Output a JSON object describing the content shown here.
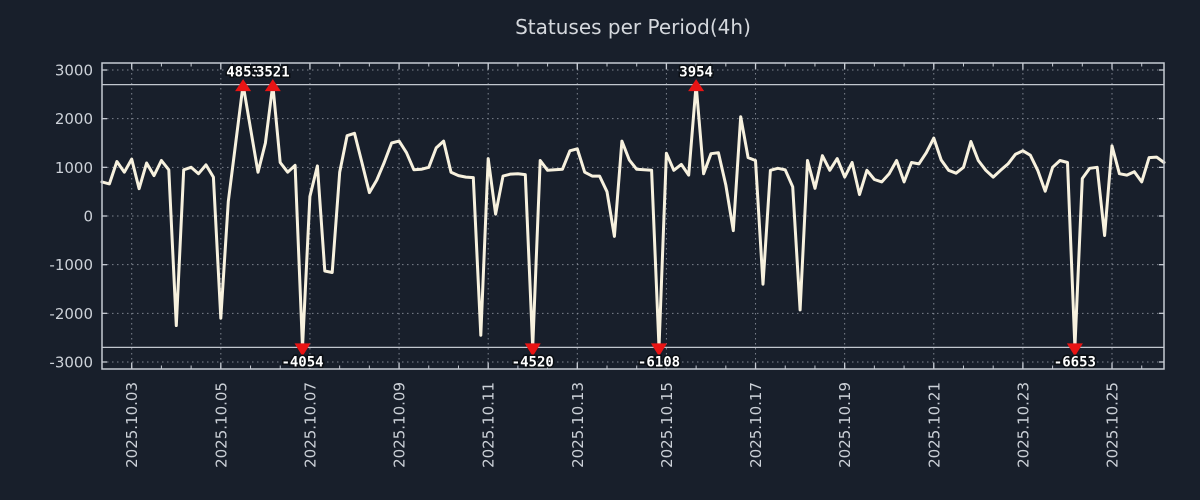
{
  "title": "Statuses per Period(4h)",
  "colors": {
    "background": "#181f2b",
    "plot_background": "#181f2b",
    "line": "#f7f1de",
    "marker": "#e81414",
    "axis_border": "#c6cbd3",
    "clip_line": "#c2c7cf",
    "grid": "#8f95a0",
    "tick_text": "#ccd1d8",
    "title_text": "#d5d8dd",
    "annotation_text": "#ffffff"
  },
  "chart_data": {
    "type": "line",
    "title": "Statuses per Period(4h)",
    "series_name": "Statuses",
    "interval_hours": 4,
    "grid": true,
    "legend_position": "none",
    "ylim": [
      -3144,
      3144
    ],
    "y_ticks": [
      3000,
      2000,
      1000,
      0,
      -1000,
      -2000,
      -3000
    ],
    "clip_value": 2700,
    "x_tick_labels": [
      "2025.10.03",
      "2025.10.05",
      "2025.10.07",
      "2025.10.09",
      "2025.10.11",
      "2025.10.13",
      "2025.10.15",
      "2025.10.17",
      "2025.10.19",
      "2025.10.21",
      "2025.10.23",
      "2025.10.25"
    ],
    "x_tick_period_indices": [
      4,
      16,
      28,
      40,
      52,
      64,
      76,
      88,
      100,
      112,
      124,
      136
    ],
    "minor_x_tick_every": 4,
    "values": [
      700,
      660,
      1120,
      900,
      1170,
      560,
      1090,
      830,
      1140,
      950,
      -2250,
      950,
      1000,
      870,
      1050,
      800,
      -2100,
      300,
      1500,
      4853,
      1800,
      900,
      1500,
      3521,
      1100,
      900,
      1040,
      -4054,
      400,
      1030,
      -1130,
      -1160,
      900,
      1650,
      1700,
      1100,
      480,
      740,
      1100,
      1500,
      1540,
      1300,
      950,
      960,
      1000,
      1400,
      1540,
      900,
      830,
      800,
      790,
      -2450,
      1180,
      40,
      820,
      860,
      870,
      850,
      -4520,
      1140,
      940,
      950,
      960,
      1340,
      1380,
      900,
      820,
      820,
      500,
      -420,
      1540,
      1150,
      960,
      950,
      940,
      -6108,
      1290,
      940,
      1060,
      840,
      3954,
      870,
      1280,
      1300,
      640,
      -300,
      2040,
      1200,
      1140,
      -1400,
      940,
      980,
      950,
      600,
      -1930,
      1140,
      570,
      1240,
      940,
      1180,
      800,
      1100,
      440,
      940,
      750,
      700,
      870,
      1140,
      700,
      1100,
      1070,
      1300,
      1600,
      1150,
      940,
      880,
      1000,
      1530,
      1140,
      940,
      800,
      940,
      1070,
      1270,
      1340,
      1250,
      940,
      510,
      1000,
      1140,
      1100,
      -6653,
      770,
      980,
      1000,
      -400,
      1440,
      870,
      840,
      910,
      700,
      1200,
      1210,
      1100
    ],
    "annotations": [
      {
        "index": 19,
        "value": 4853,
        "label": "4853"
      },
      {
        "index": 23,
        "value": 3521,
        "label": "3521"
      },
      {
        "index": 27,
        "value": -4054,
        "label": "-4054"
      },
      {
        "index": 58,
        "value": -4520,
        "label": "-4520"
      },
      {
        "index": 75,
        "value": -6108,
        "label": "-6108"
      },
      {
        "index": 80,
        "value": 3954,
        "label": "3954"
      },
      {
        "index": 131,
        "value": -6653,
        "label": "-6653"
      }
    ]
  }
}
